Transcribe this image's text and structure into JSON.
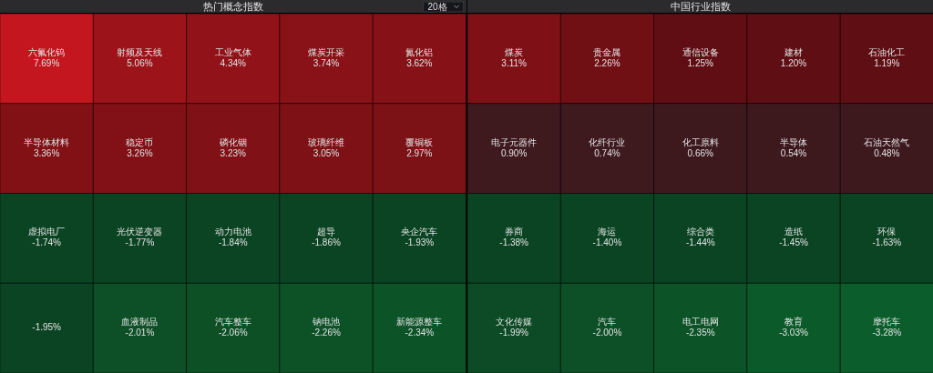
{
  "chart_data": [
    {
      "type": "other",
      "title": "热门概念指数",
      "annotations": [
        "20格"
      ],
      "categories": [
        "六氟化钨",
        "射频及天线",
        "工业气体",
        "煤炭开采",
        "氮化铝",
        "半导体材料",
        "稳定币",
        "磷化铟",
        "玻璃纤维",
        "覆铜板",
        "虚拟电厂",
        "光伏逆变器",
        "动力电池",
        "超导",
        "央企汽车",
        null,
        "血液制品",
        "汽车整车",
        "钠电池",
        "新能源整车"
      ],
      "values": [
        7.69,
        5.06,
        4.34,
        3.74,
        3.62,
        3.36,
        3.26,
        3.23,
        3.05,
        2.97,
        -1.74,
        -1.77,
        -1.84,
        -1.86,
        -1.93,
        -1.95,
        -2.01,
        -2.06,
        -2.26,
        -2.34
      ],
      "value_labels": [
        "7.69%",
        "5.06%",
        "4.34%",
        "3.74%",
        "3.62%",
        "3.36%",
        "3.26%",
        "3.23%",
        "3.05%",
        "2.97%",
        "-1.74%",
        "-1.77%",
        "-1.84%",
        "-1.86%",
        "-1.93%",
        "-1.95%",
        "-2.01%",
        "-2.06%",
        "-2.26%",
        "-2.34%"
      ]
    },
    {
      "type": "other",
      "title": "中国行业指数",
      "categories": [
        "煤炭",
        "贵金属",
        "通信设备",
        "建材",
        "石油化工",
        "电子元器件",
        "化纤行业",
        "化工原料",
        "半导体",
        "石油天然气",
        "券商",
        "海运",
        "综合类",
        "造纸",
        "环保",
        "文化传媒",
        "汽车",
        "电工电网",
        "教育",
        "摩托车"
      ],
      "values": [
        3.11,
        2.26,
        1.25,
        1.2,
        1.19,
        0.9,
        0.74,
        0.66,
        0.54,
        0.48,
        -1.38,
        -1.4,
        -1.44,
        -1.45,
        -1.63,
        -1.99,
        -2.0,
        -2.35,
        -3.03,
        -3.28
      ],
      "value_labels": [
        "3.11%",
        "2.26%",
        "1.25%",
        "1.20%",
        "1.19%",
        "0.90%",
        "0.74%",
        "0.66%",
        "0.54%",
        "0.48%",
        "-1.38%",
        "-1.40%",
        "-1.44%",
        "-1.45%",
        "-1.63%",
        "-1.99%",
        "-2.00%",
        "-2.35%",
        "-3.03%",
        "-3.28%"
      ]
    }
  ]
}
